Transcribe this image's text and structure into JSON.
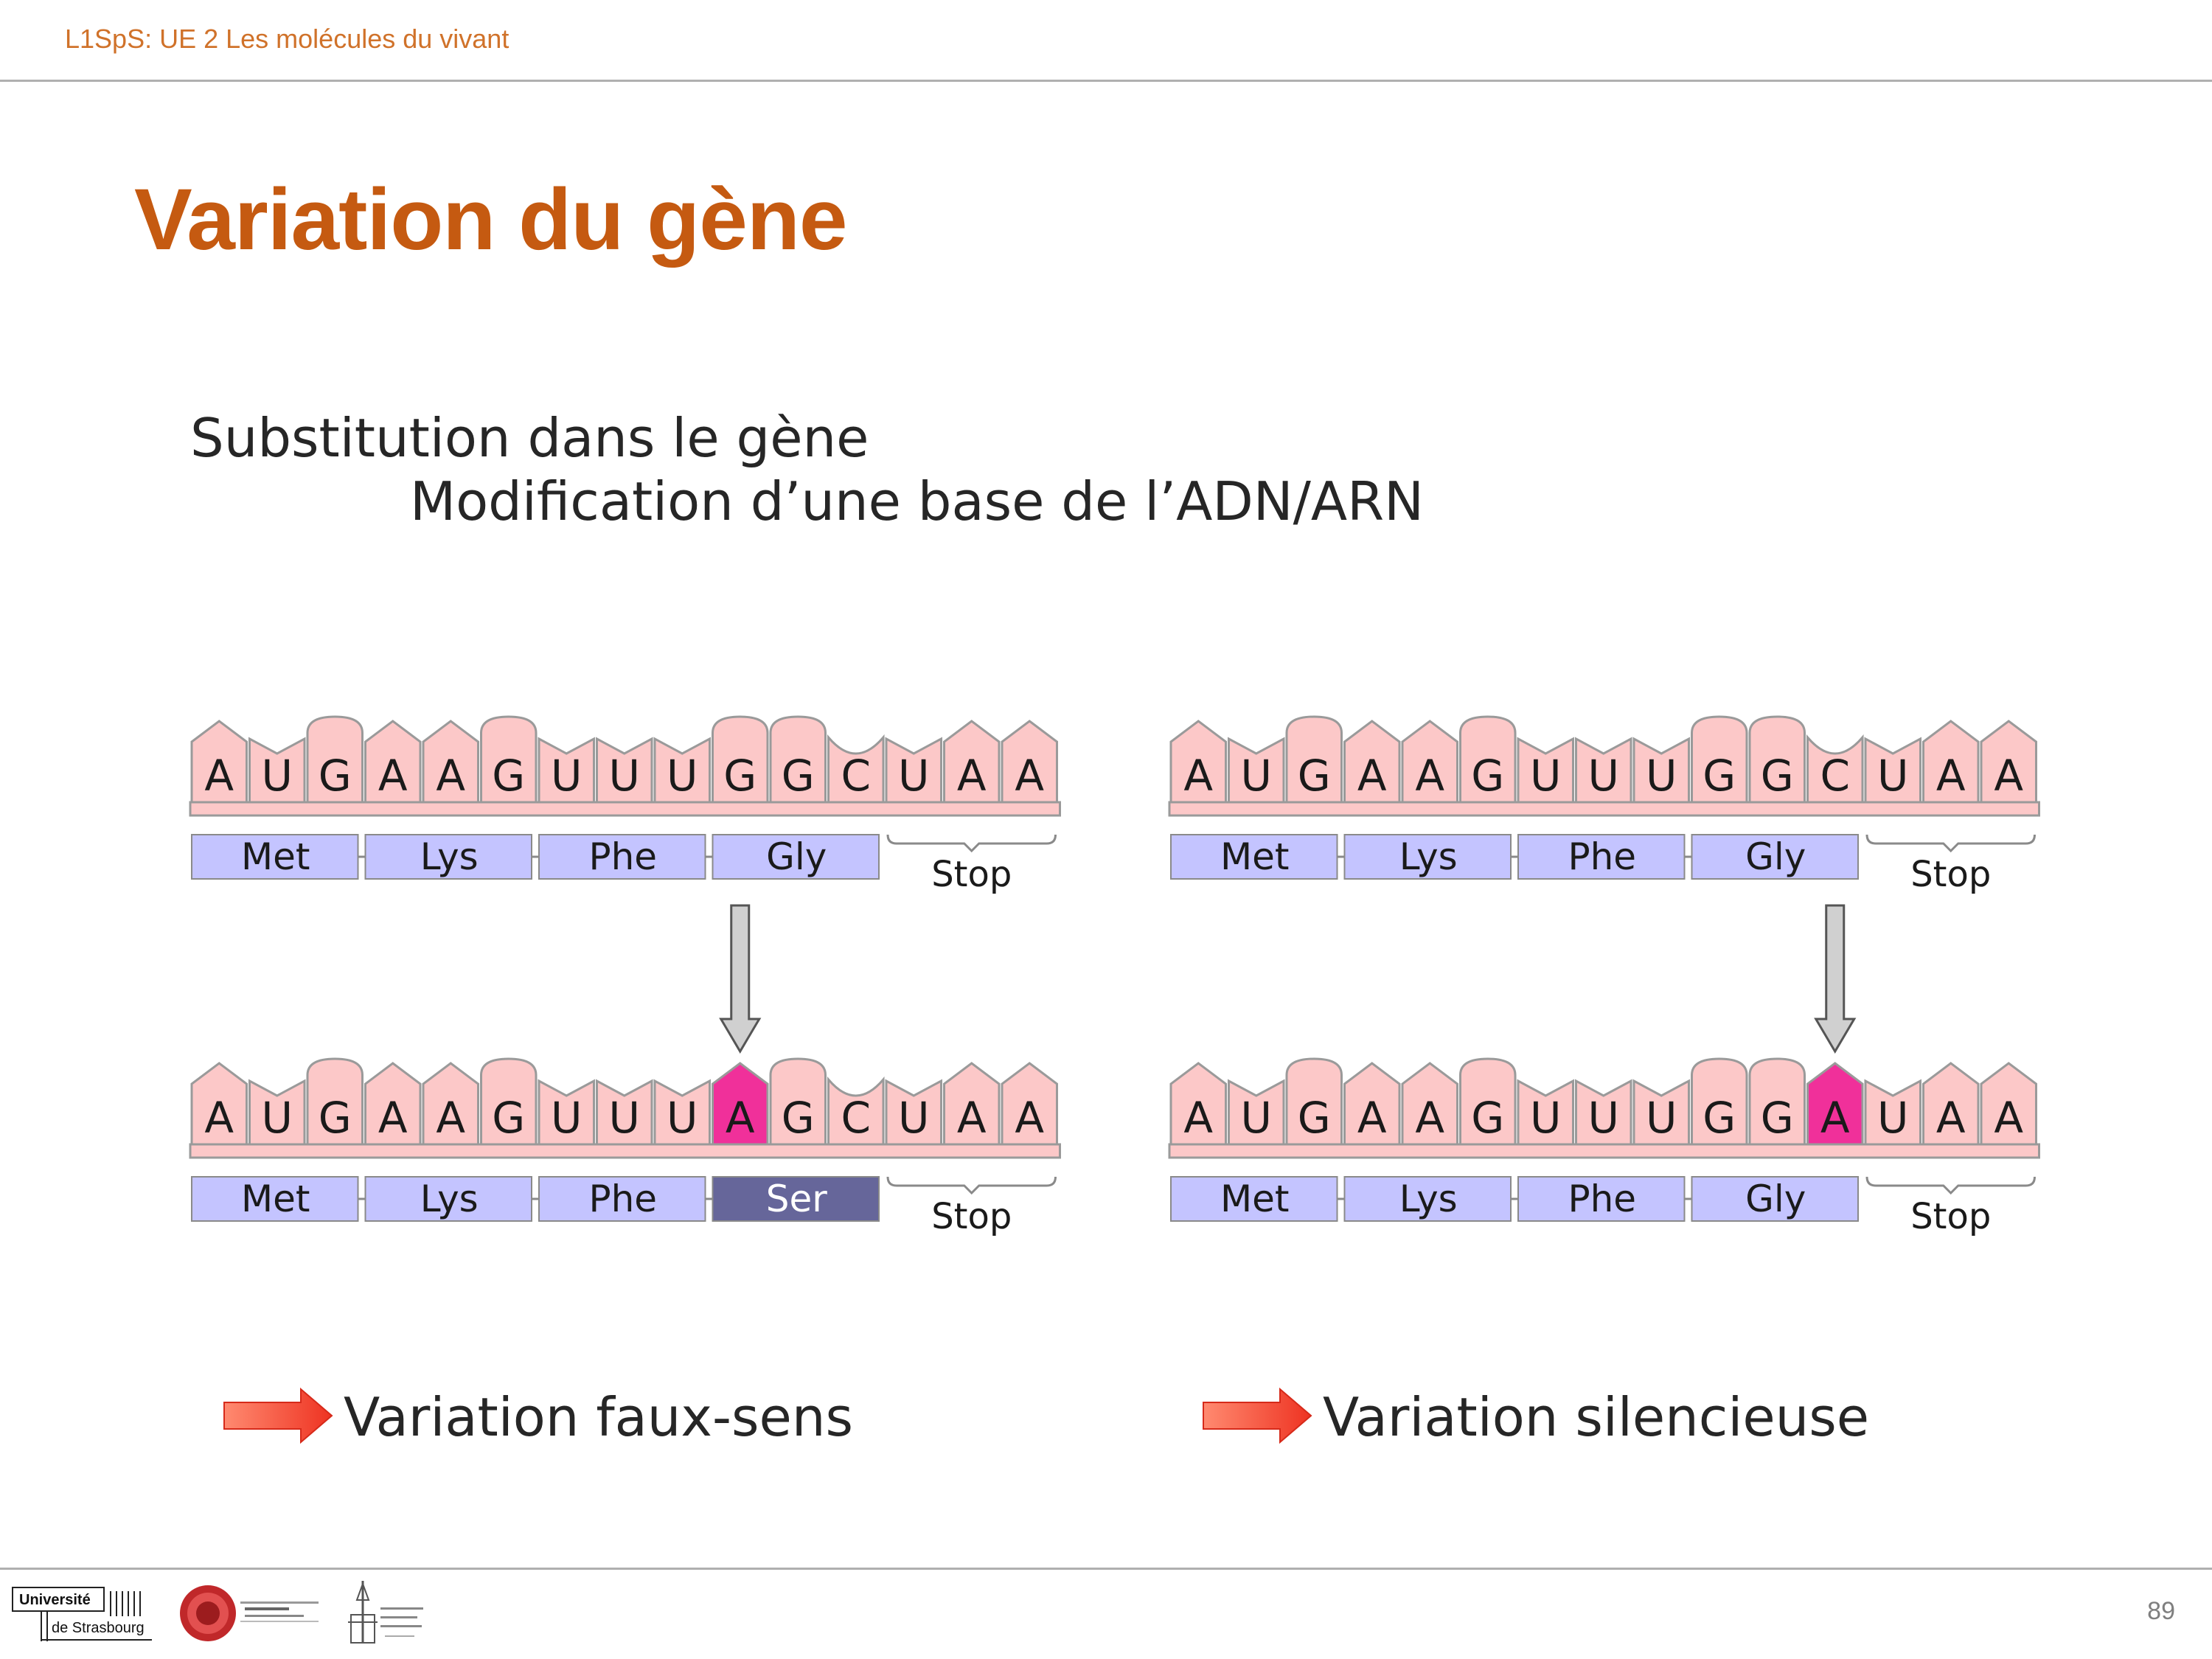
{
  "header": {
    "course": "L1SpS: UE 2 Les molécules du vivant"
  },
  "title": "Variation du gène",
  "body": {
    "line1": "Substitution dans le gène",
    "line2": "Modification d’une base de l’ADN/ARN"
  },
  "diagrams": [
    {
      "name": "missense",
      "original": {
        "bases": [
          "A",
          "U",
          "G",
          "A",
          "A",
          "G",
          "U",
          "U",
          "U",
          "G",
          "G",
          "C",
          "U",
          "A",
          "A"
        ],
        "codons": [
          "Met",
          "Lys",
          "Phe",
          "Gly"
        ],
        "stop": "Stop"
      },
      "mutant": {
        "bases": [
          "A",
          "U",
          "G",
          "A",
          "A",
          "G",
          "U",
          "U",
          "U",
          "A",
          "G",
          "C",
          "U",
          "A",
          "A"
        ],
        "codons": [
          "Met",
          "Lys",
          "Phe",
          "Ser"
        ],
        "stop": "Stop",
        "mutated_index": 9,
        "changed_codon_index": 3
      },
      "conclusion": "Variation faux-sens"
    },
    {
      "name": "silent",
      "original": {
        "bases": [
          "A",
          "U",
          "G",
          "A",
          "A",
          "G",
          "U",
          "U",
          "U",
          "G",
          "G",
          "C",
          "U",
          "A",
          "A"
        ],
        "codons": [
          "Met",
          "Lys",
          "Phe",
          "Gly"
        ],
        "stop": "Stop"
      },
      "mutant": {
        "bases": [
          "A",
          "U",
          "G",
          "A",
          "A",
          "G",
          "U",
          "U",
          "U",
          "G",
          "G",
          "A",
          "U",
          "A",
          "A"
        ],
        "codons": [
          "Met",
          "Lys",
          "Phe",
          "Gly"
        ],
        "stop": "Stop",
        "mutated_index": 11,
        "changed_codon_index": -1
      },
      "conclusion": "Variation silencieuse"
    }
  ],
  "colors": {
    "base_fill": "#fcc8c8",
    "base_stroke": "#9a9a9a",
    "mutated_fill": "#f0309a",
    "codon_fill": "#c4c4ff",
    "changed_codon_fill": "#66669a",
    "arrow_fill": "#ee3322",
    "title": "#c55a11"
  },
  "footer": {
    "page_number": "89",
    "logo_university_line1": "Université",
    "logo_university_line2": "de Strasbourg"
  }
}
